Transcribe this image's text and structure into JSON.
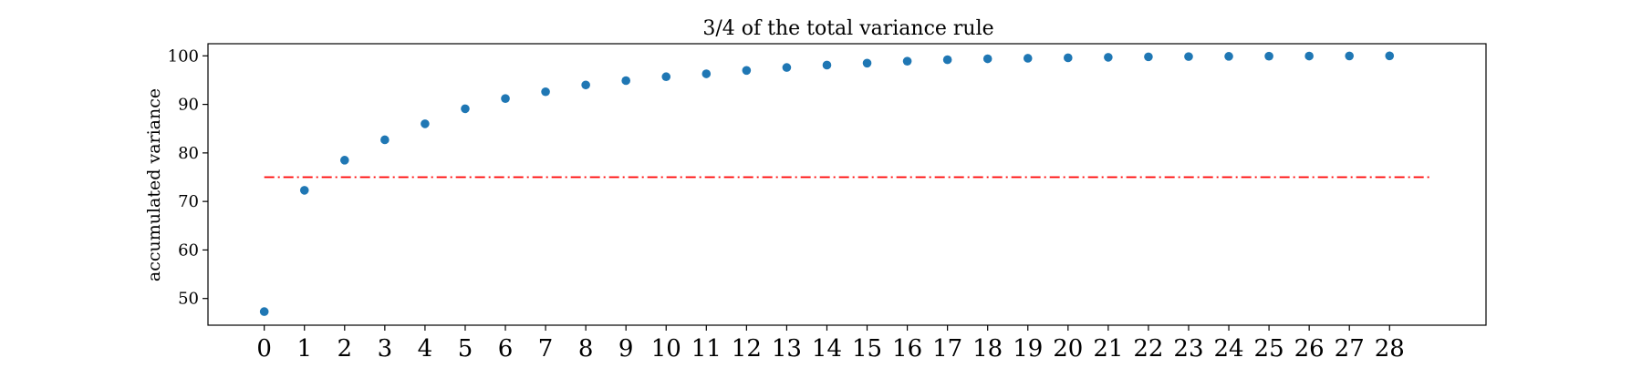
{
  "chart_data": {
    "type": "scatter",
    "title": "3/4 of the total variance rule",
    "xlabel": "",
    "ylabel": "accumulated variance",
    "x": [
      0,
      1,
      2,
      3,
      4,
      5,
      6,
      7,
      8,
      9,
      10,
      11,
      12,
      13,
      14,
      15,
      16,
      17,
      18,
      19,
      20,
      21,
      22,
      23,
      24,
      25,
      26,
      27,
      28
    ],
    "series": [
      {
        "values": [
          47.3,
          72.3,
          78.5,
          82.7,
          86.0,
          89.1,
          91.2,
          92.6,
          94.0,
          94.9,
          95.7,
          96.3,
          97.0,
          97.6,
          98.1,
          98.5,
          98.9,
          99.2,
          99.4,
          99.5,
          99.6,
          99.7,
          99.8,
          99.85,
          99.9,
          99.93,
          99.96,
          99.98,
          100.0
        ],
        "color": "#1f77b4",
        "marker": "circle"
      }
    ],
    "threshold": {
      "y": 75,
      "x_start": 0,
      "x_end": 29,
      "color": "#ff0000",
      "style": "dash-dot"
    },
    "xlim": [
      -1.4,
      30.4
    ],
    "ylim": [
      44.5,
      102.5
    ],
    "yticks": [
      50,
      60,
      70,
      80,
      90,
      100
    ],
    "xticks": [
      0,
      1,
      2,
      3,
      4,
      5,
      6,
      7,
      8,
      9,
      10,
      11,
      12,
      13,
      14,
      15,
      16,
      17,
      18,
      19,
      20,
      21,
      22,
      23,
      24,
      25,
      26,
      27,
      28
    ],
    "grid": false,
    "legend": "none"
  }
}
